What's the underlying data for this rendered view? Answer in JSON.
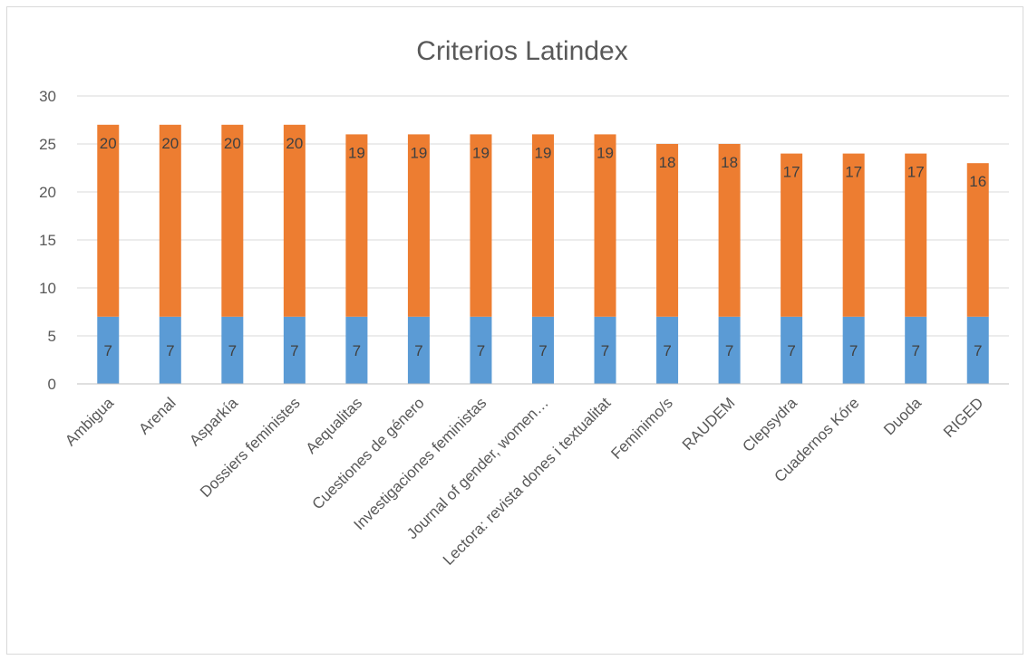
{
  "chart_data": {
    "type": "bar",
    "stacked": true,
    "title": "Criterios Latindex",
    "xlabel": "",
    "ylabel": "",
    "ylim": [
      0,
      30
    ],
    "yticks": [
      0,
      5,
      10,
      15,
      20,
      25,
      30
    ],
    "grid": true,
    "categories": [
      "Ambigua",
      "Arenal",
      "Asparkía",
      "Dossiers feministes",
      "Aequalitas",
      "Cuestiones  de género",
      "Investigaciones feministas",
      "Journal of gender, women…",
      "Lectora: revista dones i textualitat",
      "Feminimo/s",
      "RAUDEM",
      "Clepsydra",
      "Cuadernos Kóre",
      "Duoda",
      "RIGED"
    ],
    "series": [
      {
        "values": [
          7,
          7,
          7,
          7,
          7,
          7,
          7,
          7,
          7,
          7,
          7,
          7,
          7,
          7,
          7
        ],
        "color": "#5b9bd5"
      },
      {
        "values": [
          20,
          20,
          20,
          20,
          19,
          19,
          19,
          19,
          19,
          18,
          18,
          17,
          17,
          17,
          16
        ],
        "color": "#ed7d31"
      }
    ],
    "gridline_color": "#d9d9d9",
    "axis_color": "#bfbfbf"
  }
}
